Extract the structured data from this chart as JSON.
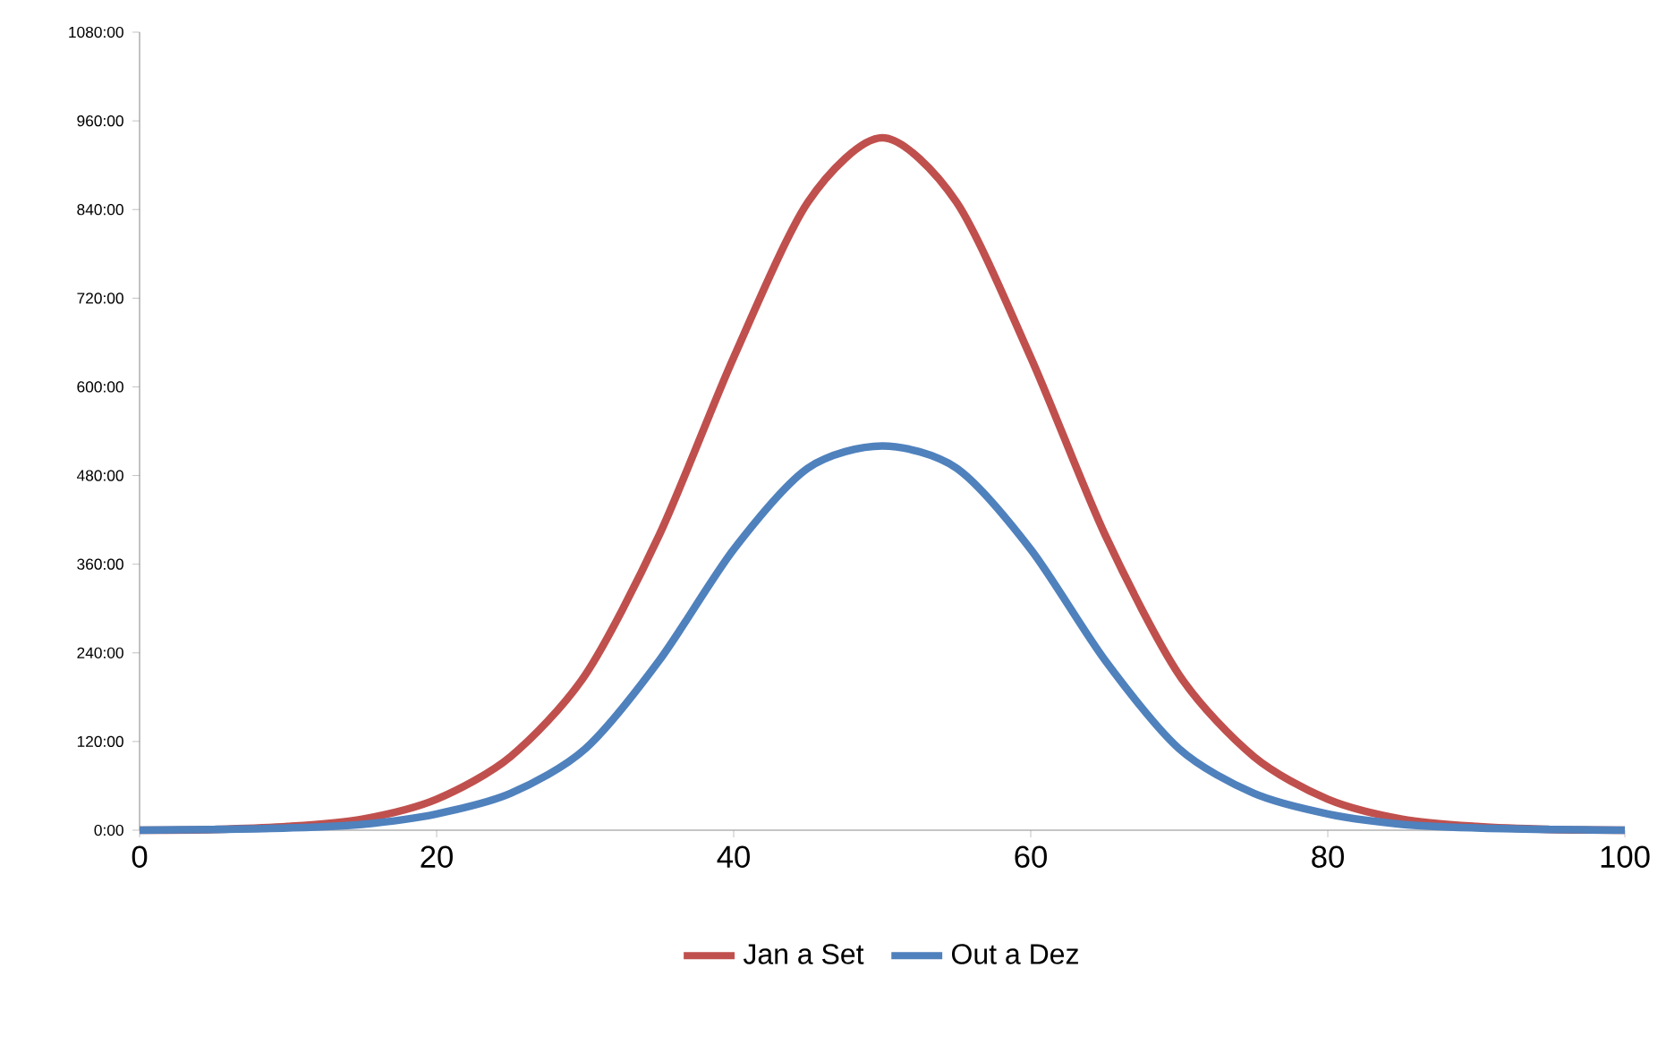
{
  "chart_data": {
    "type": "line",
    "x": [
      0,
      5,
      10,
      15,
      20,
      25,
      30,
      35,
      40,
      45,
      50,
      55,
      60,
      65,
      70,
      75,
      80,
      85,
      90,
      95,
      100
    ],
    "series": [
      {
        "name": "Jan a Set",
        "color": "#c0504d",
        "values": [
          0,
          1,
          5,
          15,
          42,
          100,
          210,
          400,
          640,
          850,
          937,
          850,
          640,
          400,
          210,
          100,
          42,
          15,
          5,
          1,
          0
        ]
      },
      {
        "name": "Out a Dez",
        "color": "#4f81bd",
        "values": [
          0,
          1,
          3,
          8,
          22,
          50,
          110,
          230,
          380,
          490,
          520,
          490,
          380,
          230,
          110,
          50,
          22,
          8,
          3,
          1,
          0
        ]
      }
    ],
    "xlim": [
      0,
      100
    ],
    "xticks": [
      0,
      20,
      40,
      60,
      80,
      100
    ],
    "ylim": [
      0,
      1080
    ],
    "yticks": [
      {
        "value": 0,
        "label": "0:00"
      },
      {
        "value": 120,
        "label": "120:00"
      },
      {
        "value": 240,
        "label": "240:00"
      },
      {
        "value": 360,
        "label": "360:00"
      },
      {
        "value": 480,
        "label": "480:00"
      },
      {
        "value": 600,
        "label": "600:00"
      },
      {
        "value": 720,
        "label": "720:00"
      },
      {
        "value": 840,
        "label": "840:00"
      },
      {
        "value": 960,
        "label": "960:00"
      },
      {
        "value": 1080,
        "label": "1080:00"
      }
    ],
    "grid": false,
    "legend": "bottom",
    "marker": "none",
    "line_style": "solid"
  }
}
